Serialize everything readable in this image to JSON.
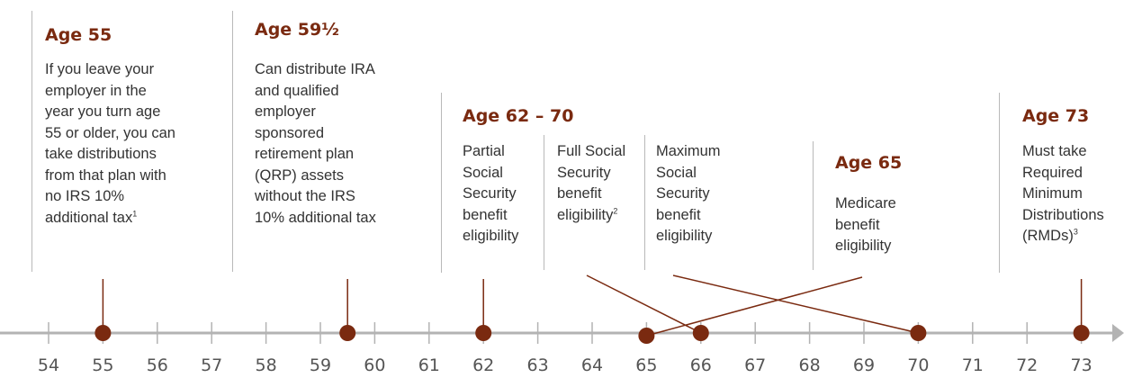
{
  "milestones": [
    {
      "id": "age55",
      "heading": "Age 55",
      "lines": [
        "If you leave your",
        "employer in the",
        "year you turn age",
        "55 or older, you can",
        "take distributions",
        "from that plan with",
        "no IRS 10%",
        "additional tax"
      ],
      "sup": "1"
    },
    {
      "id": "age595",
      "heading": "Age 59½",
      "lines": [
        "Can distribute IRA",
        "and qualified",
        "employer",
        "sponsored",
        "retirement plan",
        "(QRP) assets",
        "without the IRS",
        "10% additional tax"
      ],
      "sup": ""
    },
    {
      "id": "age62_70",
      "heading": "Age 62 – 70",
      "lines": [],
      "sup": ""
    },
    {
      "id": "partial_ss",
      "heading": "",
      "lines": [
        "Partial",
        "Social",
        "Security",
        "benefit",
        "eligibility"
      ],
      "sup": ""
    },
    {
      "id": "full_ss",
      "heading": "",
      "lines": [
        "Full Social",
        "Security",
        "benefit",
        "eligibility"
      ],
      "sup": "2"
    },
    {
      "id": "max_ss",
      "heading": "",
      "lines": [
        "Maximum",
        "Social",
        "Security",
        "benefit",
        "eligibility"
      ],
      "sup": ""
    },
    {
      "id": "age65",
      "heading": "Age 65",
      "lines": [
        "Medicare",
        "benefit",
        "eligibility"
      ],
      "sup": ""
    },
    {
      "id": "age73",
      "heading": "Age 73",
      "lines": [
        "Must take",
        "Required",
        "Minimum",
        "Distributions",
        "(RMDs)"
      ],
      "sup": "3"
    }
  ],
  "axis": {
    "ticks": [
      "54",
      "55",
      "56",
      "57",
      "58",
      "59",
      "60",
      "61",
      "62",
      "63",
      "64",
      "65",
      "66",
      "67",
      "68",
      "69",
      "70",
      "71",
      "72",
      "73"
    ],
    "min": 54,
    "max": 73
  },
  "markers": [
    {
      "age": 55,
      "label": "age55"
    },
    {
      "age": 59.5,
      "label": "age595"
    },
    {
      "age": 62,
      "label": "partial_ss"
    },
    {
      "age": 66,
      "label": "full_ss"
    },
    {
      "age": 70,
      "label": "max_ss"
    },
    {
      "age": 65,
      "label": "age65"
    },
    {
      "age": 73,
      "label": "age73"
    }
  ],
  "colors": {
    "accent": "#7a2a10",
    "axis": "#b3b3b3",
    "divider": "#b9b9b9",
    "text": "#333333"
  }
}
